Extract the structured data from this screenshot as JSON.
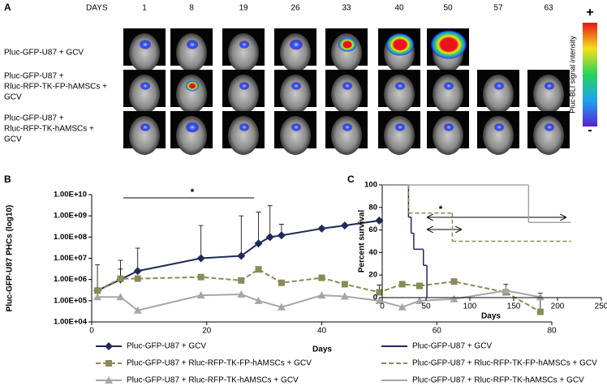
{
  "panel_a": {
    "label": "A",
    "days_title": "DAYS",
    "days": [
      1,
      8,
      19,
      26,
      33,
      40,
      50,
      57,
      63
    ],
    "rows": [
      {
        "lines": [
          "Pluc-GFP-U87 + GCV"
        ]
      },
      {
        "lines": [
          "Pluc-GFP-U87 +",
          "Rluc-RFP-TK-FP-hAMSCs +",
          "GCV"
        ]
      },
      {
        "lines": [
          "Pluc-GFP-U87 +",
          "Rluc-RFP-TK-hAMSCs +",
          "GCV"
        ]
      }
    ],
    "colorbar": {
      "max_label": "+",
      "min_label": "-",
      "title": "Pluc-BLI signal intensity"
    }
  },
  "chart_data": [
    {
      "panel_label": "B",
      "type": "line",
      "log_y": true,
      "annotation": "*",
      "y_label": "Pluc-GFP-U87 PHCs (log10)",
      "x_label": "Days",
      "xlim": [
        0,
        80
      ],
      "xticks": [
        0,
        20,
        40,
        60,
        80
      ],
      "ylim": [
        10000,
        10000000000
      ],
      "yticks": [
        {
          "value": 10000,
          "label": "1.00E+04"
        },
        {
          "value": 100000,
          "label": "1.00E+05"
        },
        {
          "value": 1000000,
          "label": "1.00E+06"
        },
        {
          "value": 10000000,
          "label": "1.00E+07"
        },
        {
          "value": 100000000,
          "label": "1.00E+08"
        },
        {
          "value": 1000000000,
          "label": "1.00E+09"
        },
        {
          "value": 10000000000,
          "label": "1.00E+10"
        }
      ],
      "series": [
        {
          "name": "Pluc-GFP-U87 + GCV",
          "color": "#1f2a5a",
          "marker": "diamond",
          "dashed": false,
          "x": [
            1,
            5,
            8,
            19,
            26,
            29,
            31,
            33,
            40,
            44,
            50
          ],
          "values": [
            300000,
            1000000,
            2500000,
            10000000,
            13000000,
            50000000,
            100000000,
            120000000,
            250000000,
            350000000,
            600000000
          ],
          "errors": [
            4700000,
            7000000,
            27500000,
            340000000,
            990000000,
            1450000000,
            2900000000,
            280000000,
            null,
            null,
            null
          ]
        },
        {
          "name": "Pluc-GFP-U87 + Rluc-RFP-TK-FP-hAMSCs + GCV",
          "color": "#8c8a56",
          "marker": "square",
          "dashed": true,
          "x": [
            1,
            5,
            8,
            19,
            26,
            29,
            33,
            40,
            44,
            50,
            54,
            57,
            63,
            72,
            78
          ],
          "values": [
            300000,
            1100000,
            1100000,
            1300000,
            900000,
            3000000,
            700000,
            1200000,
            600000,
            250000,
            600000,
            500000,
            800000,
            250000,
            30000
          ],
          "errors": [
            null,
            2000000,
            null,
            null,
            null,
            null,
            null,
            null,
            null,
            300000,
            null,
            null,
            null,
            null,
            200000
          ]
        },
        {
          "name": "Pluc-GFP-U87 + Rluc-RFP-TK-hAMSCs + GCV",
          "color": "#a6a6a6",
          "marker": "triangle",
          "dashed": false,
          "x": [
            1,
            5,
            8,
            19,
            26,
            29,
            33,
            40,
            44,
            50,
            54,
            57,
            63,
            72,
            78
          ],
          "values": [
            150000,
            150000,
            35000,
            180000,
            200000,
            100000,
            50000,
            180000,
            160000,
            100000,
            50000,
            100000,
            120000,
            300000,
            150000
          ],
          "errors": [
            null,
            null,
            null,
            null,
            null,
            null,
            null,
            null,
            null,
            null,
            null,
            null,
            null,
            300000,
            null
          ]
        }
      ]
    },
    {
      "panel_label": "C",
      "type": "step",
      "annotation": "*",
      "y_label": "Percent survival",
      "x_label": "Days",
      "xlim": [
        0,
        250
      ],
      "xticks": [
        0,
        50,
        100,
        150,
        200,
        250
      ],
      "ylim": [
        0,
        100
      ],
      "yticks": [
        0,
        20,
        40,
        60,
        80,
        100
      ],
      "series": [
        {
          "name": "Pluc-GFP-U87 + GCV",
          "color": "#1f2a5a",
          "dashed": false,
          "x": [
            0,
            30,
            33,
            36,
            47,
            51
          ],
          "values": [
            100,
            71.4,
            57.1,
            42.9,
            28.6,
            0
          ]
        },
        {
          "name": "Pluc-GFP-U87 + Rluc-RFP-TK-FP-hAMSCs + GCV",
          "color": "#8c8a56",
          "dashed": true,
          "x": [
            0,
            30,
            80,
            215
          ],
          "values": [
            100,
            75,
            50,
            50
          ]
        },
        {
          "name": "Pluc-GFP-U87 + Rluc-RFP-TK-hAMSCs + GCV",
          "color": "#a6a6a6",
          "dashed": false,
          "x": [
            0,
            167,
            215
          ],
          "values": [
            100,
            66.7,
            66.7
          ]
        }
      ]
    }
  ]
}
